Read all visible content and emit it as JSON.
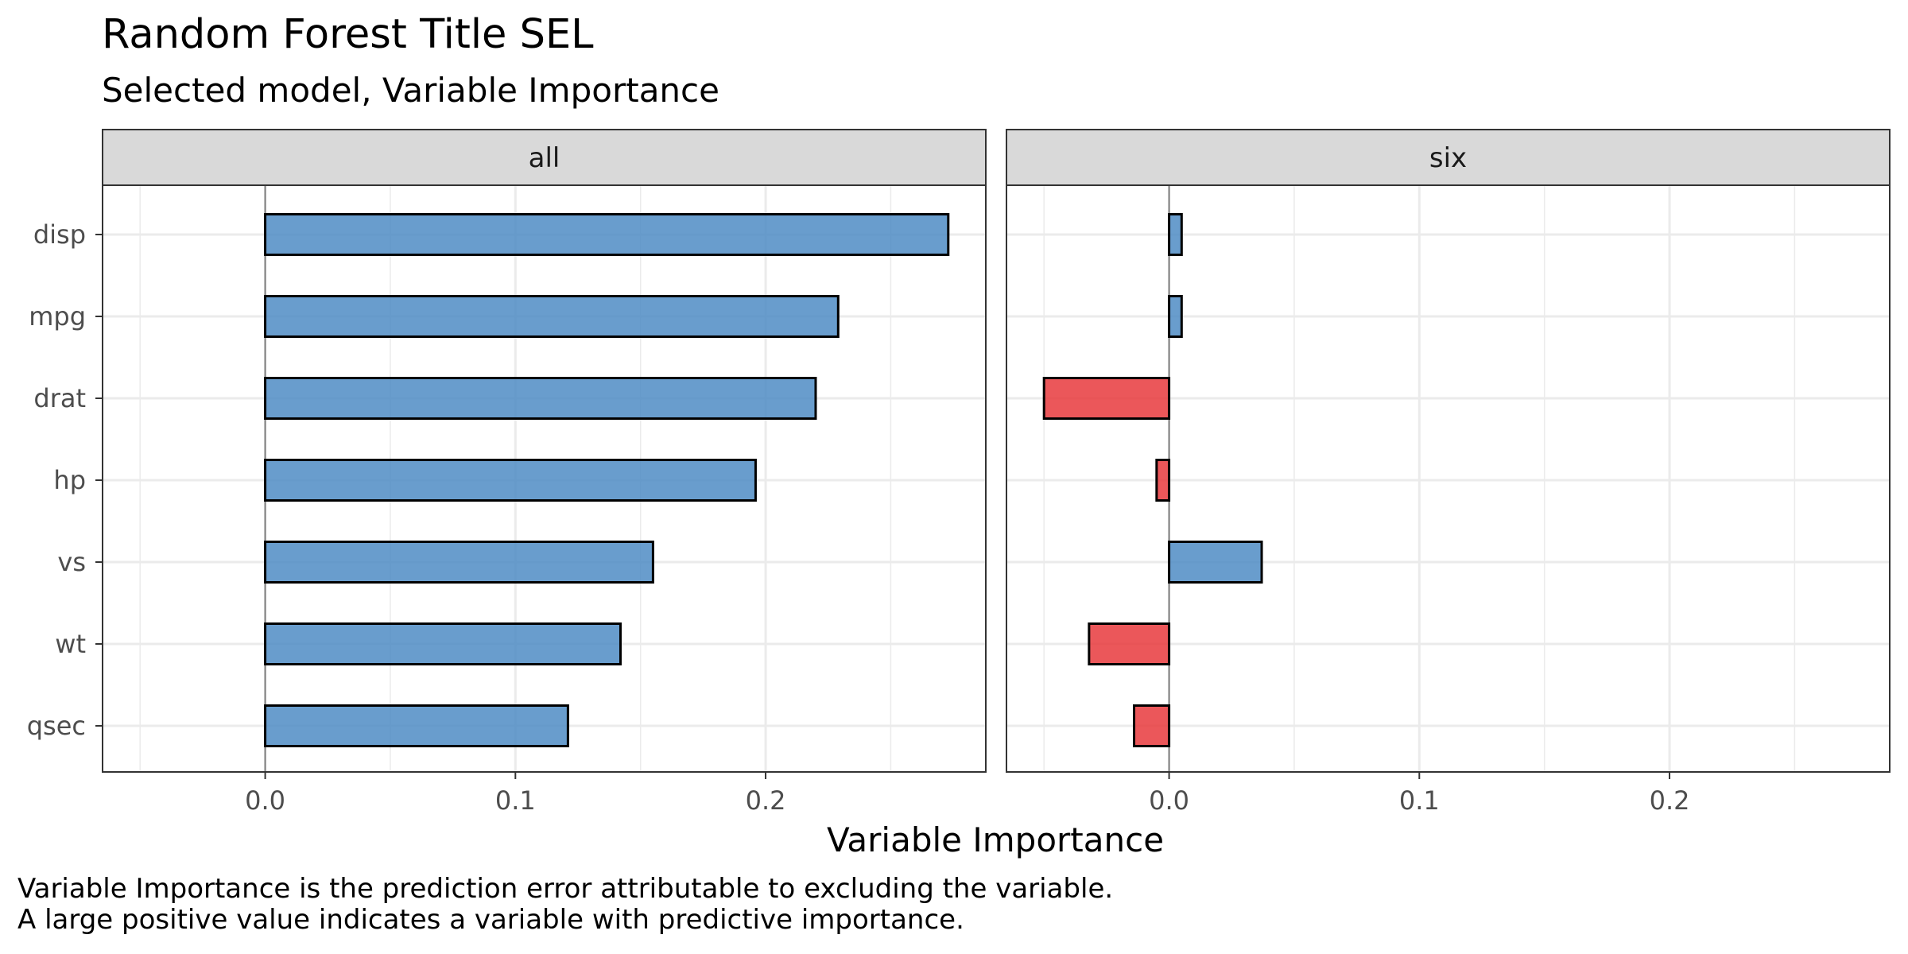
{
  "chart_data": {
    "type": "bar",
    "orientation": "horizontal",
    "title": "Random Forest Title SEL",
    "subtitle": "Selected model, Variable Importance",
    "xlabel": "Variable Importance",
    "ylabel": "",
    "caption_lines": [
      "Variable Importance is the prediction error attributable to excluding the variable.",
      "A large positive value indicates a variable with predictive importance."
    ],
    "categories": [
      "disp",
      "mpg",
      "drat",
      "hp",
      "vs",
      "wt",
      "qsec"
    ],
    "xlim": [
      -0.065,
      0.288
    ],
    "xticks": [
      0.0,
      0.1,
      0.2
    ],
    "xtick_labels": [
      "0.0",
      "0.1",
      "0.2"
    ],
    "grid": true,
    "legend": "none",
    "colors": {
      "positive": "#4f8cc4",
      "negative": "#e8393d",
      "outline": "#000000",
      "strip": "#d9d9d9"
    },
    "panels": [
      {
        "name": "all",
        "values": [
          0.273,
          0.229,
          0.22,
          0.196,
          0.155,
          0.142,
          0.121
        ]
      },
      {
        "name": "six",
        "values": [
          0.005,
          0.005,
          -0.05,
          -0.005,
          0.037,
          -0.032,
          -0.014
        ]
      }
    ]
  }
}
